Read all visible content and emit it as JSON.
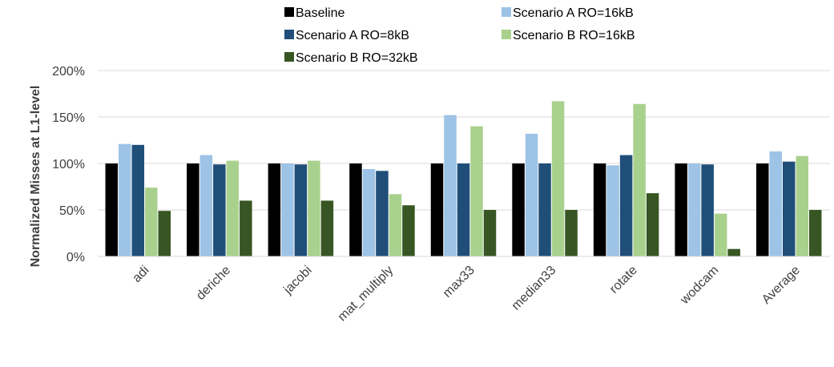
{
  "chart_data": {
    "type": "bar",
    "ylabel": "Normalized Misses at L1-level",
    "ylim": [
      0,
      200
    ],
    "yticks": [
      0,
      50,
      100,
      150,
      200
    ],
    "ytick_labels": [
      "0%",
      "50%",
      "100%",
      "150%",
      "200%"
    ],
    "grid": true,
    "legend": "top",
    "categories": [
      "adi",
      "deriche",
      "jacobi",
      "mat_multiply",
      "max33",
      "median33",
      "rotate",
      "wodcam",
      "Average"
    ],
    "series": [
      {
        "name": "Baseline",
        "color": "#000000",
        "values": [
          100,
          100,
          100,
          100,
          100,
          100,
          100,
          100,
          100
        ]
      },
      {
        "name": "Scenario A RO=16kB",
        "color": "#9DC3E6",
        "values": [
          121,
          109,
          100,
          94,
          152,
          132,
          98,
          100,
          113
        ]
      },
      {
        "name": "Scenario A RO=8kB",
        "color": "#1F4E79",
        "values": [
          120,
          99,
          99,
          92,
          100,
          100,
          109,
          99,
          102
        ]
      },
      {
        "name": "Scenario B RO=16kB",
        "color": "#A9D18E",
        "values": [
          74,
          103,
          103,
          67,
          140,
          167,
          164,
          46,
          108
        ]
      },
      {
        "name": "Scenario B RO=32kB",
        "color": "#375623",
        "values": [
          49,
          60,
          60,
          55,
          50,
          50,
          68,
          8,
          50
        ]
      }
    ]
  }
}
